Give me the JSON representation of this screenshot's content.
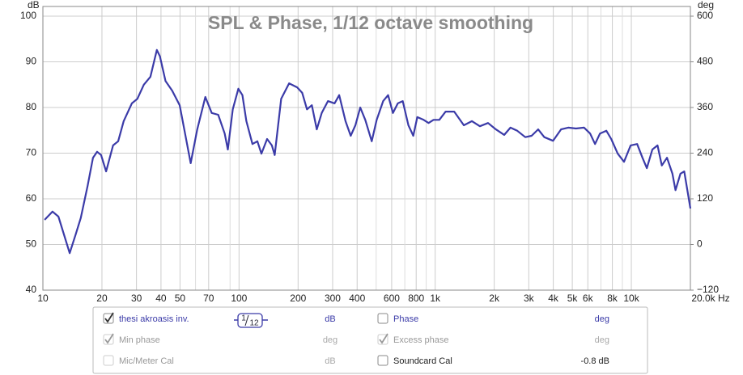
{
  "chart_data": {
    "type": "line",
    "title": "SPL & Phase, 1/12 octave smoothing",
    "y_unit": "dB",
    "y2_unit": "deg",
    "xscale": "log",
    "grid": true,
    "xlim": [
      10,
      20000
    ],
    "ylim": [
      40,
      100
    ],
    "y2lim": [
      -120,
      600
    ],
    "xticks": [
      10,
      20,
      30,
      40,
      50,
      70,
      100,
      200,
      300,
      400,
      600,
      800,
      {
        "value": 1000,
        "label": "1k"
      },
      {
        "value": 2000,
        "label": "2k"
      },
      {
        "value": 3000,
        "label": "3k"
      },
      {
        "value": 4000,
        "label": "4k"
      },
      {
        "value": 5000,
        "label": "5k"
      },
      {
        "value": 6000,
        "label": "6k"
      },
      {
        "value": 8000,
        "label": "8k"
      },
      {
        "value": 10000,
        "label": "10k"
      },
      {
        "value": 20000,
        "label": "20.0k Hz"
      }
    ],
    "xminorticks": [
      60,
      90,
      500,
      700,
      900,
      7000,
      9000
    ],
    "yticks": [
      40,
      50,
      60,
      70,
      80,
      90,
      100
    ],
    "y2ticks": [
      {
        "value": -120,
        "label": "−120"
      },
      0,
      120,
      240,
      360,
      480,
      600
    ],
    "x": [
      10.2,
      11.2,
      12,
      13.7,
      14.7,
      15.6,
      16.9,
      18,
      18.9,
      19.8,
      21,
      22.8,
      24.2,
      25.8,
      28.4,
      30.3,
      32.7,
      35.3,
      38.1,
      39.5,
      42.2,
      45.6,
      49.8,
      53.5,
      56.7,
      61.2,
      67.3,
      72.6,
      78.3,
      84.5,
      87.7,
      92.9,
      99.2,
      104,
      109,
      117,
      124,
      130,
      139,
      147,
      152,
      164,
      180,
      198,
      210,
      222,
      235,
      249,
      264,
      284,
      307,
      324,
      349,
      371,
      392,
      415,
      440,
      475,
      503,
      543,
      575,
      609,
      645,
      683,
      730,
      773,
      811,
      873,
      925,
      980,
      1050,
      1130,
      1250,
      1400,
      1540,
      1690,
      1860,
      2040,
      2250,
      2420,
      2620,
      2880,
      3100,
      3350,
      3600,
      3990,
      4380,
      4770,
      5220,
      5740,
      6160,
      6530,
      6920,
      7460,
      7900,
      8520,
      9180,
      9920,
      10700,
      11400,
      12000,
      12800,
      13600,
      14300,
      15200,
      16200,
      16800,
      17800,
      18600,
      20000
    ],
    "series": [
      {
        "name": "thesi akroasis inv.",
        "color": "#3b3ba8",
        "values": [
          55.4,
          57.2,
          56.1,
          48.1,
          52.2,
          55.8,
          62.8,
          69,
          70.3,
          69.6,
          66,
          71.7,
          72.6,
          77,
          80.9,
          81.9,
          85,
          86.7,
          92.6,
          91.2,
          85.8,
          83.7,
          80.5,
          73.5,
          67.8,
          75.2,
          82.3,
          78.8,
          78.4,
          74.3,
          70.8,
          79.6,
          84.1,
          82.7,
          77,
          72,
          72.6,
          69.9,
          73.1,
          71.7,
          69.6,
          81.9,
          85.3,
          84.4,
          83.2,
          79.6,
          80.5,
          75.2,
          78.8,
          81.4,
          80.9,
          82.7,
          77,
          73.8,
          76.1,
          80,
          77.3,
          72.6,
          77.3,
          81.4,
          82.7,
          78.8,
          80.9,
          81.4,
          76.1,
          73.8,
          77.9,
          77.3,
          76.6,
          77.3,
          77.3,
          79.1,
          79.1,
          76.1,
          77,
          75.9,
          76.6,
          75.2,
          74,
          75.6,
          74.9,
          73.5,
          73.8,
          75.2,
          73.5,
          72.7,
          75.2,
          75.6,
          75.4,
          75.6,
          74.3,
          72,
          74.3,
          74.9,
          73.1,
          69.9,
          68.1,
          71.7,
          72,
          69,
          66.7,
          70.8,
          71.7,
          67.3,
          69,
          65.5,
          61.9,
          65.5,
          66,
          57.9
        ]
      }
    ]
  },
  "legend_panel": {
    "smoothing_numerator": "1",
    "smoothing_denominator": "12",
    "items": [
      {
        "label": "thesi akroasis inv.",
        "unit": "dB",
        "checked": true,
        "enabled": true,
        "active": true
      },
      {
        "label": "Phase",
        "unit": "deg",
        "checked": false,
        "enabled": true,
        "active": true
      },
      {
        "label": "Min phase",
        "unit": "deg",
        "checked": true,
        "enabled": false,
        "active": false
      },
      {
        "label": "Excess phase",
        "unit": "deg",
        "checked": true,
        "enabled": false,
        "active": true
      },
      {
        "label": "Mic/Meter Cal",
        "unit": "dB",
        "checked": false,
        "enabled": false,
        "active": false
      },
      {
        "label": "Soundcard Cal",
        "unit": "-0.8 dB",
        "checked": false,
        "enabled": true,
        "active": false
      }
    ]
  }
}
